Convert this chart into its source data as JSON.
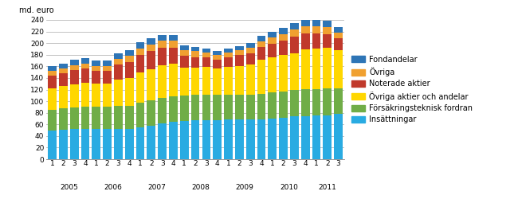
{
  "title": "",
  "ylabel_text": "md. euro",
  "ylim": [
    0,
    240
  ],
  "yticks": [
    0,
    20,
    40,
    60,
    80,
    100,
    120,
    140,
    160,
    180,
    200,
    220,
    240
  ],
  "quarters": [
    "1",
    "2",
    "3",
    "4",
    "1",
    "2",
    "3",
    "4",
    "1",
    "2",
    "3",
    "4",
    "1",
    "2",
    "3",
    "4",
    "1",
    "2",
    "3",
    "4",
    "1",
    "2",
    "3",
    "4",
    "1",
    "2",
    "3"
  ],
  "years": [
    "2005",
    "2006",
    "2007",
    "2008",
    "2009",
    "2010",
    "2011"
  ],
  "year_tick_positions": [
    1.5,
    5.5,
    9.5,
    13.5,
    17.5,
    21.5,
    25.0
  ],
  "legend_labels": [
    "Fondandelar",
    "Övriga",
    "Noterade aktier",
    "Övriga aktier och andelar",
    "Försäkringsteknisk fordran",
    "Insättningar"
  ],
  "legend_colors": [
    "#2E75B6",
    "#F0A030",
    "#C0392B",
    "#FFD700",
    "#70AD47",
    "#29ABE2"
  ],
  "Insattningar": [
    49,
    51,
    52,
    52,
    52,
    52,
    52,
    52,
    55,
    58,
    62,
    64,
    66,
    67,
    67,
    67,
    68,
    68,
    68,
    68,
    70,
    72,
    74,
    74,
    75,
    76,
    78
  ],
  "Forsakringsteknisk fordran": [
    36,
    37,
    37,
    38,
    38,
    38,
    40,
    40,
    43,
    43,
    44,
    44,
    44,
    44,
    44,
    44,
    43,
    43,
    43,
    45,
    45,
    45,
    45,
    47,
    46,
    46,
    44
  ],
  "Ovriga aktier och andelar": [
    37,
    38,
    40,
    42,
    40,
    40,
    45,
    48,
    52,
    54,
    56,
    56,
    48,
    47,
    48,
    46,
    48,
    50,
    52,
    58,
    60,
    62,
    64,
    68,
    70,
    70,
    66
  ],
  "Noterade aktier": [
    22,
    22,
    24,
    24,
    22,
    22,
    26,
    28,
    30,
    32,
    30,
    28,
    20,
    18,
    16,
    14,
    16,
    18,
    20,
    22,
    24,
    26,
    28,
    28,
    26,
    24,
    20
  ],
  "Ovriga": [
    8,
    8,
    9,
    9,
    9,
    9,
    10,
    10,
    11,
    11,
    12,
    12,
    10,
    10,
    9,
    9,
    9,
    9,
    9,
    10,
    11,
    11,
    12,
    12,
    12,
    11,
    10
  ],
  "Fondandelar": [
    8,
    8,
    9,
    9,
    9,
    9,
    10,
    10,
    10,
    10,
    10,
    10,
    8,
    8,
    7,
    7,
    7,
    7,
    8,
    9,
    10,
    10,
    12,
    12,
    12,
    11,
    10
  ]
}
